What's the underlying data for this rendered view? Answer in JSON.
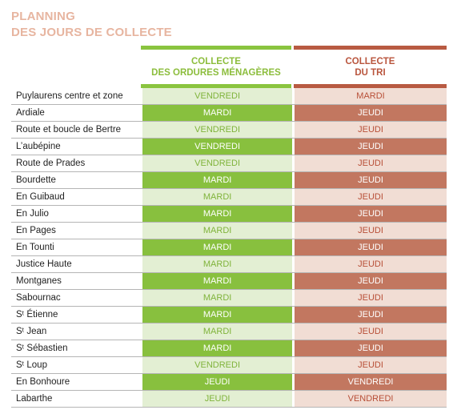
{
  "title": {
    "line1": "PLANNING",
    "line2": "DES JOURS DE COLLECTE"
  },
  "columns": {
    "household": {
      "line1": "COLLECTE",
      "line2": "DES ORDURES MÉNAGÈRES"
    },
    "recycling": {
      "line1": "COLLECTE",
      "line2": "DU TRI"
    }
  },
  "colors": {
    "green_accent": "#8ac43f",
    "red_accent": "#b85a42",
    "title": "#e7b5a0"
  },
  "rows": [
    {
      "name": "Puylaurens centre et zone",
      "household": "VENDREDI",
      "recycling": "MARDI"
    },
    {
      "name": "Ardiale",
      "household": "MARDI",
      "recycling": "JEUDI"
    },
    {
      "name": "Route et boucle de Bertre",
      "household": "VENDREDI",
      "recycling": "JEUDI"
    },
    {
      "name": "L’aubépine",
      "household": "VENDREDI",
      "recycling": "JEUDI"
    },
    {
      "name": "Route de Prades",
      "household": "VENDREDI",
      "recycling": "JEUDI"
    },
    {
      "name": "Bourdette",
      "household": "MARDI",
      "recycling": "JEUDI"
    },
    {
      "name": "En Guibaud",
      "household": "MARDI",
      "recycling": "JEUDI"
    },
    {
      "name": "En Julio",
      "household": "MARDI",
      "recycling": "JEUDI"
    },
    {
      "name": "En Pages",
      "household": "MARDI",
      "recycling": "JEUDI"
    },
    {
      "name": "En Tounti",
      "household": "MARDI",
      "recycling": "JEUDI"
    },
    {
      "name": "Justice Haute",
      "household": "MARDI",
      "recycling": "JEUDI"
    },
    {
      "name": "Montganes",
      "household": "MARDI",
      "recycling": "JEUDI"
    },
    {
      "name": "Sabournac",
      "household": "MARDI",
      "recycling": "JEUDI"
    },
    {
      "name": "Sᵗ Étienne",
      "household": "MARDI",
      "recycling": "JEUDI"
    },
    {
      "name": "Sᵗ Jean",
      "household": "MARDI",
      "recycling": "JEUDI"
    },
    {
      "name": "Sᵗ Sébastien",
      "household": "MARDI",
      "recycling": "JEUDI"
    },
    {
      "name": "Sᵗ Loup",
      "household": "VENDREDI",
      "recycling": "JEUDI"
    },
    {
      "name": "En Bonhoure",
      "household": "JEUDI",
      "recycling": "VENDREDI"
    },
    {
      "name": "Labarthe",
      "household": "JEUDI",
      "recycling": "VENDREDI"
    }
  ]
}
